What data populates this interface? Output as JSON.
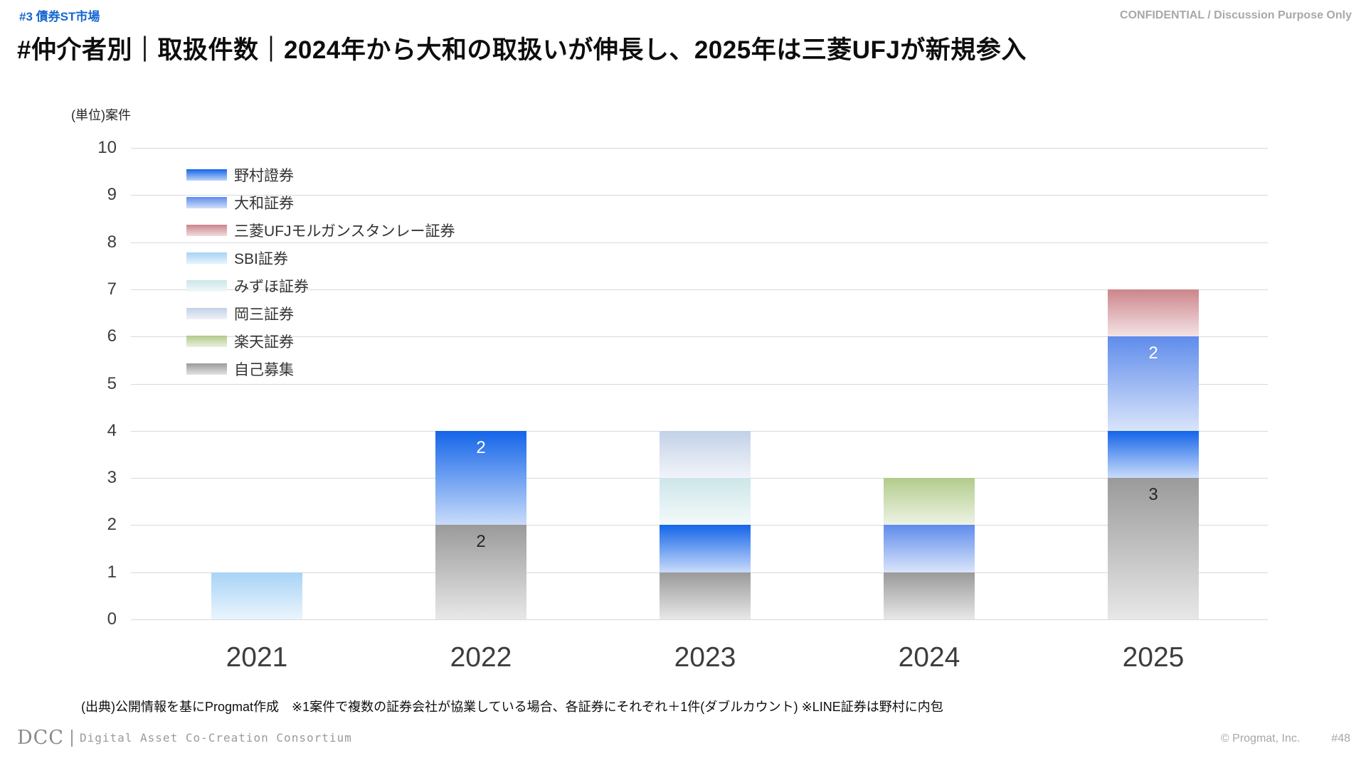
{
  "header": {
    "tag": "#3 債券ST市場",
    "confidential": "CONFIDENTIAL / Discussion Purpose Only",
    "title": "#仲介者別｜取扱件数｜2024年から大和の取扱いが伸長し、2025年は三菱UFJが新規参入"
  },
  "chart_data": {
    "type": "bar",
    "stacked": true,
    "title": "",
    "unit_label": "(単位)案件",
    "xlabel": "",
    "ylabel": "",
    "ylim": [
      0,
      10
    ],
    "yticks": [
      0,
      1,
      2,
      3,
      4,
      5,
      6,
      7,
      8,
      9,
      10
    ],
    "grid": true,
    "legend_position": "top-left-inside",
    "categories": [
      "2021",
      "2022",
      "2023",
      "2024",
      "2025"
    ],
    "series": [
      {
        "name": "野村證券",
        "color": "#1465e9",
        "values": [
          0,
          2,
          1,
          0,
          1
        ]
      },
      {
        "name": "大和証券",
        "color": "#5f8ceb",
        "values": [
          0,
          0,
          0,
          1,
          2
        ]
      },
      {
        "name": "三菱UFJモルガンスタンレー証券",
        "color": "#cc858b",
        "values": [
          0,
          0,
          0,
          0,
          1
        ]
      },
      {
        "name": "SBI証券",
        "color": "#a7d3f6",
        "values": [
          1,
          0,
          0,
          0,
          0
        ]
      },
      {
        "name": "みずほ証券",
        "color": "#cde6e9",
        "values": [
          0,
          0,
          1,
          0,
          0
        ]
      },
      {
        "name": "岡三証券",
        "color": "#c2d1e7",
        "values": [
          0,
          0,
          1,
          0,
          0
        ]
      },
      {
        "name": "楽天証券",
        "color": "#b2cb8b",
        "values": [
          0,
          0,
          0,
          1,
          0
        ]
      },
      {
        "name": "自己募集",
        "color": "#9a9a9a",
        "values": [
          0,
          2,
          1,
          1,
          3
        ]
      }
    ],
    "bars": [
      {
        "category": "2021",
        "total": 1,
        "segments": [
          {
            "series": "SBI証券",
            "value": 1,
            "label": ""
          }
        ]
      },
      {
        "category": "2022",
        "total": 4,
        "segments": [
          {
            "series": "自己募集",
            "value": 2,
            "label": "2",
            "label_color": "#262626"
          },
          {
            "series": "野村證券",
            "value": 2,
            "label": "2",
            "label_color": "#ffffff"
          }
        ]
      },
      {
        "category": "2023",
        "total": 4,
        "segments": [
          {
            "series": "自己募集",
            "value": 1,
            "label": ""
          },
          {
            "series": "野村證券",
            "value": 1,
            "label": ""
          },
          {
            "series": "みずほ証券",
            "value": 1,
            "label": ""
          },
          {
            "series": "岡三証券",
            "value": 1,
            "label": ""
          }
        ]
      },
      {
        "category": "2024",
        "total": 3,
        "segments": [
          {
            "series": "自己募集",
            "value": 1,
            "label": ""
          },
          {
            "series": "大和証券",
            "value": 1,
            "label": ""
          },
          {
            "series": "楽天証券",
            "value": 1,
            "label": ""
          }
        ]
      },
      {
        "category": "2025",
        "total": 7,
        "segments": [
          {
            "series": "自己募集",
            "value": 3,
            "label": "3",
            "label_color": "#262626"
          },
          {
            "series": "野村證券",
            "value": 1,
            "label": ""
          },
          {
            "series": "大和証券",
            "value": 2,
            "label": "2",
            "label_color": "#ffffff"
          },
          {
            "series": "三菱UFJモルガンスタンレー証券",
            "value": 1,
            "label": ""
          }
        ]
      }
    ]
  },
  "footnote": "(出典)公開情報を基にProgmat作成　※1案件で複数の証券会社が協業している場合、各証券にそれぞれ＋1件(ダブルカウント) ※LINE証券は野村に内包",
  "footer": {
    "logo": "DCC",
    "consortium": "Digital Asset Co-Creation Consortium",
    "copyright": "© Progmat, Inc.",
    "page": "#48"
  }
}
